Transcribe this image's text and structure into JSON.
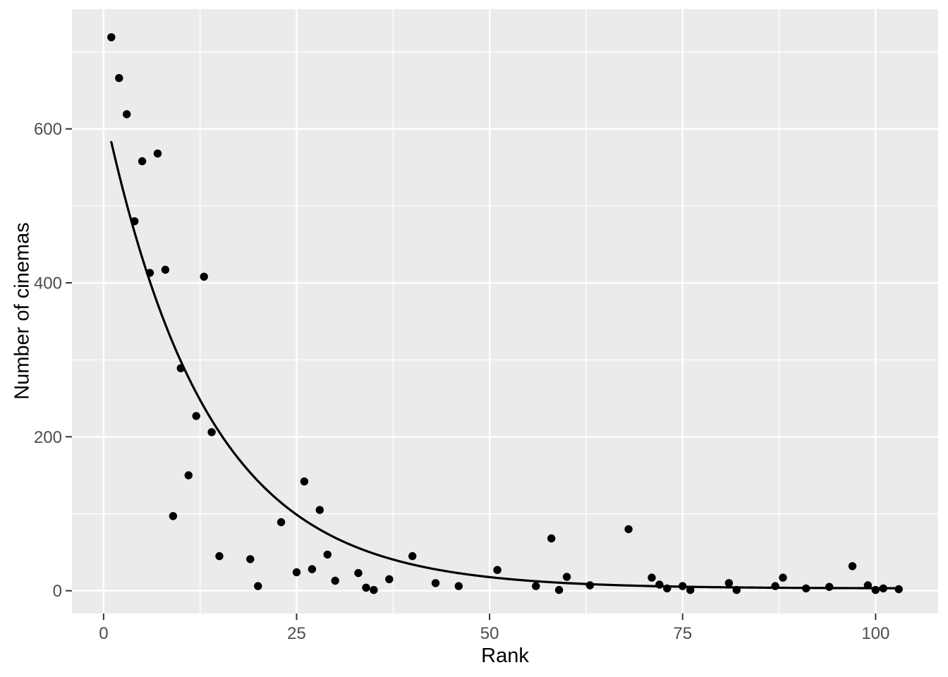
{
  "chart_data": {
    "type": "scatter",
    "title": "",
    "xlabel": "Rank",
    "ylabel": "Number of cinemas",
    "legend": "none",
    "grid": {
      "major": true,
      "minor": true
    },
    "x_ticks": [
      0,
      25,
      50,
      75,
      100
    ],
    "y_ticks": [
      0,
      200,
      400,
      600
    ],
    "x_minor_ticks": [
      12.5,
      37.5,
      62.5,
      87.5
    ],
    "y_minor_ticks": [
      100,
      300,
      500,
      700
    ],
    "x_domain": [
      -4.1,
      108.1
    ],
    "y_domain": [
      -29.6,
      755.5
    ],
    "points": [
      [
        1,
        719
      ],
      [
        2,
        666
      ],
      [
        3,
        619
      ],
      [
        4,
        480
      ],
      [
        5,
        558
      ],
      [
        6,
        413
      ],
      [
        7,
        568
      ],
      [
        8,
        417
      ],
      [
        9,
        97
      ],
      [
        10,
        289
      ],
      [
        11,
        150
      ],
      [
        12,
        227
      ],
      [
        13,
        408
      ],
      [
        14,
        206
      ],
      [
        15,
        45
      ],
      [
        19,
        41
      ],
      [
        20,
        6
      ],
      [
        23,
        89
      ],
      [
        25,
        24
      ],
      [
        26,
        142
      ],
      [
        27,
        28
      ],
      [
        28,
        105
      ],
      [
        29,
        47
      ],
      [
        30,
        13
      ],
      [
        33,
        23
      ],
      [
        34,
        4
      ],
      [
        35,
        1
      ],
      [
        37,
        15
      ],
      [
        40,
        45
      ],
      [
        43,
        10
      ],
      [
        46,
        6
      ],
      [
        51,
        27
      ],
      [
        56,
        6
      ],
      [
        58,
        68
      ],
      [
        59,
        1
      ],
      [
        60,
        18
      ],
      [
        63,
        7
      ],
      [
        68,
        80
      ],
      [
        71,
        17
      ],
      [
        72,
        8
      ],
      [
        73,
        3
      ],
      [
        75,
        6
      ],
      [
        76,
        1
      ],
      [
        81,
        10
      ],
      [
        82,
        1
      ],
      [
        87,
        6
      ],
      [
        88,
        17
      ],
      [
        91,
        3
      ],
      [
        94,
        5
      ],
      [
        97,
        32
      ],
      [
        99,
        7
      ],
      [
        100,
        1
      ],
      [
        101,
        3
      ],
      [
        103,
        2
      ]
    ],
    "trend_line": {
      "kind": "exponential_decay_fit",
      "formula": "y = 625 * exp(-0.075 * x) + 3",
      "A": 625,
      "b": 0.075,
      "c": 3,
      "x_start": 1,
      "x_end": 103
    },
    "colors": {
      "figure_background": "#ffffff",
      "panel_background": "#ebebeb",
      "grid": "#ffffff",
      "points": "#000000",
      "line": "#000000",
      "tick_marks": "#333333",
      "tick_labels": "#4d4d4d",
      "axis_titles": "#000000"
    }
  }
}
